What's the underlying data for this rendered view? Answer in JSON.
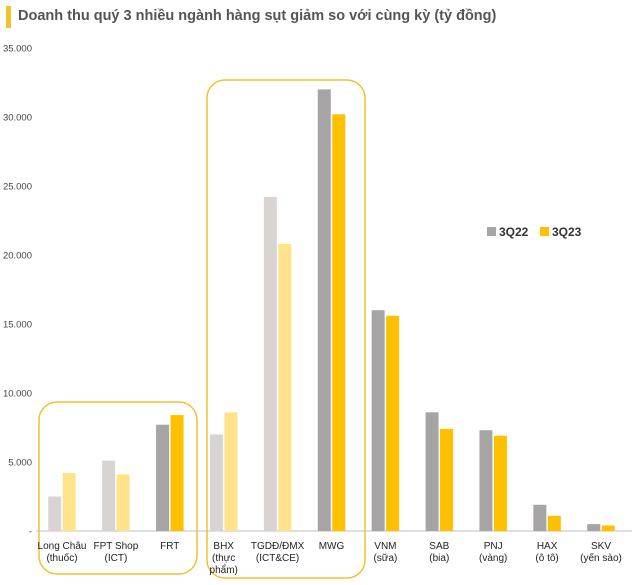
{
  "title": "Doanh thu quý 3 nhiều ngành hàng sụt giảm so với cùng kỳ (tỷ đồng)",
  "colors": {
    "accent": "#F2C12E",
    "highlight_frame": "#F2C12E",
    "series_3q22": "#A6A4A4",
    "series_3q23": "#FFC000",
    "series_3q22_faded": "#D9D3D2",
    "series_3q23_faded": "#FFE38A"
  },
  "chart_data": {
    "type": "bar",
    "title": "Doanh thu quý 3 nhiều ngành hàng sụt giảm so với cùng kỳ (tỷ đồng)",
    "xlabel": "",
    "ylabel": "",
    "ylim": [
      0,
      35000
    ],
    "y_ticks": [
      "-",
      "5.000",
      "10.000",
      "15.000",
      "20.000",
      "25.000",
      "30.000",
      "35.000"
    ],
    "grid": false,
    "legend_position": "right",
    "categories": [
      [
        "Long Châu",
        "(thuốc)"
      ],
      [
        "FPT Shop",
        "(ICT)"
      ],
      [
        "FRT"
      ],
      [
        "BHX",
        "(thực",
        "phẩm)"
      ],
      [
        "TGDĐ/ĐMX",
        "(ICT&CE)"
      ],
      [
        "MWG"
      ],
      [
        "VNM",
        "(sữa)"
      ],
      [
        "SAB",
        "(bia)"
      ],
      [
        "PNJ",
        "(vàng)"
      ],
      [
        "HAX",
        "(ô tô)"
      ],
      [
        "SKV",
        "(yến sào)"
      ]
    ],
    "faded": [
      true,
      true,
      false,
      true,
      true,
      false,
      false,
      false,
      false,
      false,
      false
    ],
    "series": [
      {
        "name": "3Q22",
        "values": [
          2500,
          5100,
          7700,
          7000,
          24200,
          32000,
          16000,
          8600,
          7300,
          1900,
          500
        ]
      },
      {
        "name": "3Q23",
        "values": [
          4200,
          4100,
          8400,
          8600,
          20800,
          30200,
          15600,
          7400,
          6900,
          1100,
          400
        ]
      }
    ],
    "highlight_groups": [
      [
        "Long Châu",
        "FPT Shop",
        "FRT"
      ],
      [
        "BHX",
        "TGDĐ/ĐMX",
        "MWG"
      ]
    ]
  }
}
